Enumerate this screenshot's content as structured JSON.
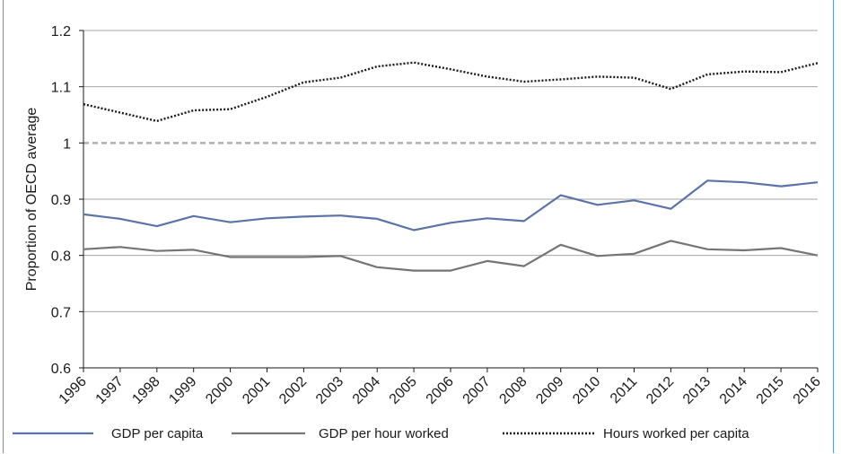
{
  "chart_data": {
    "type": "line",
    "ylabel": "Proportion of OECD average",
    "xlabel": "",
    "ylim": [
      0.6,
      1.2
    ],
    "yticks": [
      "0.6",
      "0.7",
      "0.8",
      "0.9",
      "1",
      "1.1",
      "1.2"
    ],
    "grid": true,
    "legend_position": "bottom",
    "categories": [
      "1996",
      "1997",
      "1998",
      "1999",
      "2000",
      "2001",
      "2002",
      "2003",
      "2004",
      "2005",
      "2006",
      "2007",
      "2008",
      "2009",
      "2010",
      "2011",
      "2012",
      "2013",
      "2014",
      "2015",
      "2016"
    ],
    "reference_line": {
      "value": 1.0,
      "color": "#b0b0b0",
      "style": "dashed"
    },
    "series": [
      {
        "name": "GDP per capita",
        "color": "#5b73a8",
        "style": "solid",
        "values": [
          0.873,
          0.865,
          0.852,
          0.87,
          0.859,
          0.866,
          0.869,
          0.871,
          0.865,
          0.845,
          0.858,
          0.866,
          0.861,
          0.907,
          0.89,
          0.898,
          0.883,
          0.933,
          0.93,
          0.923,
          0.93
        ]
      },
      {
        "name": "GDP per hour worked",
        "color": "#757575",
        "style": "solid",
        "values": [
          0.811,
          0.815,
          0.808,
          0.81,
          0.797,
          0.797,
          0.797,
          0.799,
          0.779,
          0.773,
          0.773,
          0.79,
          0.781,
          0.819,
          0.799,
          0.803,
          0.826,
          0.811,
          0.809,
          0.813,
          0.8
        ]
      },
      {
        "name": "Hours worked per capita",
        "color": "#1a1a1a",
        "style": "dotted",
        "values": [
          1.069,
          1.054,
          1.039,
          1.058,
          1.06,
          1.082,
          1.108,
          1.116,
          1.136,
          1.143,
          1.131,
          1.118,
          1.109,
          1.113,
          1.118,
          1.116,
          1.096,
          1.122,
          1.127,
          1.126,
          1.142
        ]
      }
    ]
  }
}
